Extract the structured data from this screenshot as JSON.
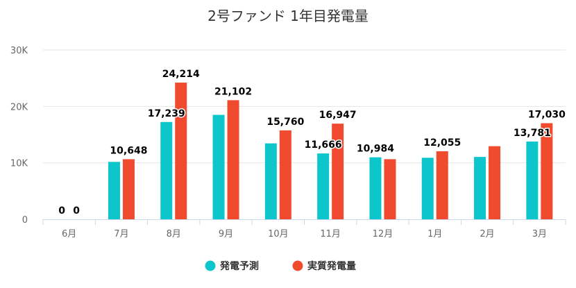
{
  "chart_data": {
    "type": "bar",
    "title": "2号ファンド 1年目発電量",
    "categories": [
      "6月",
      "7月",
      "8月",
      "9月",
      "10月",
      "11月",
      "12月",
      "1月",
      "2月",
      "3月"
    ],
    "series": [
      {
        "name": "発電予測",
        "color": "#0cc6cc",
        "values": [
          0,
          10170,
          17239,
          18500,
          13450,
          11666,
          10984,
          10900,
          11050,
          13781
        ]
      },
      {
        "name": "実質発電量",
        "color": "#f04b2f",
        "values": [
          0,
          10648,
          24214,
          21102,
          15760,
          16947,
          10650,
          12055,
          12950,
          17030
        ]
      }
    ],
    "data_labels": [
      {
        "category": "6月",
        "series": "発電予測",
        "text": "0"
      },
      {
        "category": "6月",
        "series": "実質発電量",
        "text": "0"
      },
      {
        "category": "7月",
        "series": "実質発電量",
        "text": "10,648"
      },
      {
        "category": "8月",
        "series": "発電予測",
        "text": "17,239"
      },
      {
        "category": "8月",
        "series": "実質発電量",
        "text": "24,214"
      },
      {
        "category": "9月",
        "series": "実質発電量",
        "text": "21,102"
      },
      {
        "category": "10月",
        "series": "実質発電量",
        "text": "15,760"
      },
      {
        "category": "11月",
        "series": "発電予測",
        "text": "11,666"
      },
      {
        "category": "11月",
        "series": "実質発電量",
        "text": "16,947"
      },
      {
        "category": "12月",
        "series": "発電予測",
        "text": "10,984"
      },
      {
        "category": "1月",
        "series": "実質発電量",
        "text": "12,055"
      },
      {
        "category": "3月",
        "series": "発電予測",
        "text": "13,781"
      },
      {
        "category": "3月",
        "series": "実質発電量",
        "text": "17,030"
      }
    ],
    "yticks": [
      {
        "value": 0,
        "label": "0"
      },
      {
        "value": 10000,
        "label": "10K"
      },
      {
        "value": 20000,
        "label": "20K"
      },
      {
        "value": 30000,
        "label": "30K"
      }
    ],
    "ylim": [
      0,
      30000
    ],
    "xlabel": "",
    "ylabel": "",
    "grid": true,
    "legend_position": "bottom-center"
  }
}
